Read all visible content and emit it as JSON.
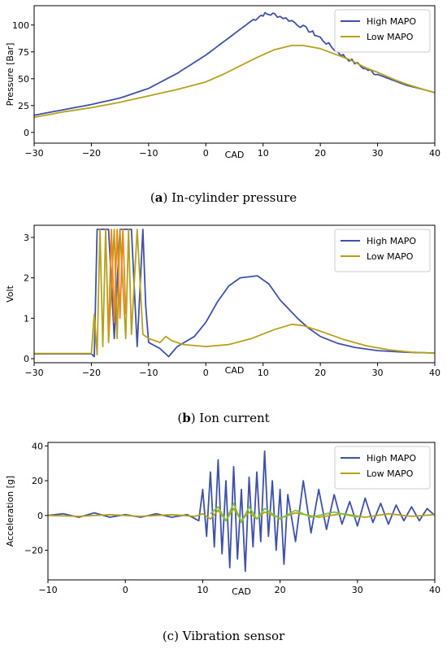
{
  "colors": {
    "high": "#3f51a8",
    "low": "#b5a21c",
    "orange": "#f5821f",
    "green": "#7cc440"
  },
  "chart_data": [
    {
      "type": "line",
      "caption": "(a) In-cylinder pressure",
      "caption_bold": "a",
      "caption_rest": "In-cylinder pressure",
      "xlabel": "CAD",
      "ylabel": "Pressure [Bar]",
      "xlim": [
        -30,
        40
      ],
      "ylim": [
        -10,
        118
      ],
      "xticks": [
        -30,
        -20,
        -10,
        0,
        10,
        20,
        30,
        40
      ],
      "yticks": [
        0,
        25,
        50,
        75,
        100
      ],
      "legend": "top-right",
      "series": [
        {
          "name": "High MAPO",
          "color": "high",
          "noise": 2,
          "points": [
            [
              -30,
              16
            ],
            [
              -25,
              21
            ],
            [
              -20,
              26
            ],
            [
              -15,
              32
            ],
            [
              -10,
              41
            ],
            [
              -5,
              55
            ],
            [
              0,
              72
            ],
            [
              3,
              84
            ],
            [
              6,
              96
            ],
            [
              8,
              104
            ],
            [
              10,
              110
            ],
            [
              12,
              110
            ],
            [
              15,
              104
            ],
            [
              18,
              95
            ],
            [
              20,
              88
            ],
            [
              23,
              75
            ],
            [
              25,
              68
            ],
            [
              28,
              59
            ],
            [
              30,
              54
            ],
            [
              33,
              48
            ],
            [
              35,
              44
            ],
            [
              38,
              40
            ],
            [
              40,
              37
            ]
          ]
        },
        {
          "name": "Low MAPO",
          "color": "low",
          "noise": 0,
          "points": [
            [
              -30,
              14
            ],
            [
              -25,
              19
            ],
            [
              -20,
              23
            ],
            [
              -15,
              28
            ],
            [
              -10,
              34
            ],
            [
              -5,
              40
            ],
            [
              0,
              47
            ],
            [
              3,
              54
            ],
            [
              6,
              62
            ],
            [
              9,
              70
            ],
            [
              12,
              77
            ],
            [
              15,
              81
            ],
            [
              17,
              81
            ],
            [
              20,
              78
            ],
            [
              23,
              72
            ],
            [
              25,
              68
            ],
            [
              28,
              60
            ],
            [
              30,
              56
            ],
            [
              33,
              49
            ],
            [
              35,
              45
            ],
            [
              38,
              40
            ],
            [
              40,
              37
            ]
          ]
        }
      ]
    },
    {
      "type": "line",
      "caption": "(b) Ion current",
      "caption_bold": "b",
      "caption_rest": "Ion current",
      "xlabel": "CAD",
      "ylabel": "Volt",
      "xlim": [
        -30,
        40
      ],
      "ylim": [
        -0.1,
        3.3
      ],
      "xticks": [
        -30,
        -20,
        -10,
        0,
        10,
        20,
        30,
        40
      ],
      "yticks": [
        0,
        1,
        2,
        3
      ],
      "legend": "top-right",
      "series": [
        {
          "name": "High MAPO",
          "color": "high",
          "noise": 0,
          "points": [
            [
              -30,
              0.12
            ],
            [
              -20,
              0.12
            ],
            [
              -19.5,
              0.05
            ],
            [
              -19,
              3.2
            ],
            [
              -17,
              3.2
            ],
            [
              -16,
              0.5
            ],
            [
              -15,
              3.2
            ],
            [
              -13,
              3.2
            ],
            [
              -12,
              0.3
            ],
            [
              -11,
              3.2
            ],
            [
              -10.5,
              1.3
            ],
            [
              -10,
              0.4
            ],
            [
              -8,
              0.25
            ],
            [
              -6.5,
              0.05
            ],
            [
              -5,
              0.3
            ],
            [
              -2,
              0.55
            ],
            [
              0,
              0.9
            ],
            [
              2,
              1.4
            ],
            [
              4,
              1.8
            ],
            [
              6,
              2.0
            ],
            [
              9,
              2.05
            ],
            [
              11,
              1.85
            ],
            [
              13,
              1.45
            ],
            [
              16,
              1.0
            ],
            [
              18,
              0.75
            ],
            [
              20,
              0.55
            ],
            [
              23,
              0.38
            ],
            [
              26,
              0.28
            ],
            [
              30,
              0.2
            ],
            [
              35,
              0.16
            ],
            [
              40,
              0.14
            ]
          ]
        },
        {
          "name": "Low MAPO",
          "color": "low",
          "noise": 0,
          "points": [
            [
              -30,
              0.13
            ],
            [
              -20,
              0.13
            ],
            [
              -19.5,
              1.1
            ],
            [
              -19,
              0.1
            ],
            [
              -18.5,
              3.2
            ],
            [
              -18,
              0.3
            ],
            [
              -17.5,
              3.2
            ],
            [
              -17,
              0.4
            ],
            [
              -16,
              3.2
            ],
            [
              -15.5,
              0.5
            ],
            [
              -15,
              3.2
            ],
            [
              -14,
              0.5
            ],
            [
              -13.5,
              3.2
            ],
            [
              -13,
              0.6
            ],
            [
              -12,
              3.2
            ],
            [
              -11,
              0.6
            ],
            [
              -10,
              0.5
            ],
            [
              -8,
              0.4
            ],
            [
              -7,
              0.55
            ],
            [
              -6,
              0.45
            ],
            [
              -4,
              0.35
            ],
            [
              0,
              0.3
            ],
            [
              4,
              0.35
            ],
            [
              8,
              0.5
            ],
            [
              12,
              0.72
            ],
            [
              15,
              0.85
            ],
            [
              17,
              0.82
            ],
            [
              20,
              0.68
            ],
            [
              24,
              0.48
            ],
            [
              28,
              0.32
            ],
            [
              32,
              0.22
            ],
            [
              36,
              0.16
            ],
            [
              40,
              0.14
            ]
          ]
        },
        {
          "name": "",
          "color": "orange",
          "noise": 0,
          "points": [
            [
              -17,
              0.7
            ],
            [
              -16.5,
              3.2
            ],
            [
              -16,
              0.9
            ],
            [
              -15.5,
              3.2
            ],
            [
              -15,
              1.0
            ],
            [
              -14.5,
              3.2
            ],
            [
              -14,
              1.1
            ]
          ]
        }
      ]
    },
    {
      "type": "line",
      "caption": "(c) Vibration sensor",
      "caption_bold": "",
      "caption_rest": "(c) Vibration sensor",
      "xlabel": "CAD",
      "ylabel": "Acceleration [g]",
      "xlim": [
        -10,
        40
      ],
      "ylim": [
        -37,
        42
      ],
      "xticks": [
        -10,
        0,
        10,
        20,
        30,
        40
      ],
      "yticks": [
        -20,
        0,
        20,
        40
      ],
      "legend": "top-right",
      "series": [
        {
          "name": "High MAPO",
          "color": "high",
          "noise": 0,
          "points": [
            [
              -10,
              0
            ],
            [
              -8,
              1
            ],
            [
              -6,
              -1
            ],
            [
              -4,
              1.5
            ],
            [
              -2,
              -1
            ],
            [
              0,
              0.5
            ],
            [
              2,
              -1
            ],
            [
              4,
              1
            ],
            [
              6,
              -1
            ],
            [
              8,
              0.5
            ],
            [
              9.5,
              -3
            ],
            [
              10,
              15
            ],
            [
              10.5,
              -12
            ],
            [
              11,
              25
            ],
            [
              11.5,
              -18
            ],
            [
              12,
              32
            ],
            [
              12.5,
              -22
            ],
            [
              13,
              20
            ],
            [
              13.5,
              -30
            ],
            [
              14,
              28
            ],
            [
              14.5,
              -25
            ],
            [
              15,
              15
            ],
            [
              15.5,
              -32
            ],
            [
              16,
              22
            ],
            [
              16.5,
              -18
            ],
            [
              17,
              25
            ],
            [
              17.5,
              -15
            ],
            [
              18,
              37
            ],
            [
              18.5,
              -12
            ],
            [
              19,
              20
            ],
            [
              19.5,
              -20
            ],
            [
              20,
              15
            ],
            [
              20.5,
              -28
            ],
            [
              21,
              12
            ],
            [
              22,
              -15
            ],
            [
              23,
              20
            ],
            [
              24,
              -10
            ],
            [
              25,
              15
            ],
            [
              26,
              -8
            ],
            [
              27,
              12
            ],
            [
              28,
              -5
            ],
            [
              29,
              8
            ],
            [
              30,
              -6
            ],
            [
              31,
              10
            ],
            [
              32,
              -4
            ],
            [
              33,
              7
            ],
            [
              34,
              -5
            ],
            [
              35,
              6
            ],
            [
              36,
              -3
            ],
            [
              37,
              5
            ],
            [
              38,
              -3
            ],
            [
              39,
              4
            ],
            [
              40,
              0
            ]
          ]
        },
        {
          "name": "Low MAPO",
          "color": "low",
          "noise": 0,
          "points": [
            [
              -10,
              0
            ],
            [
              -6,
              -0.5
            ],
            [
              -2,
              0.5
            ],
            [
              2,
              -0.5
            ],
            [
              6,
              0.5
            ],
            [
              9,
              -0.5
            ],
            [
              10,
              1
            ],
            [
              11,
              -2
            ],
            [
              12,
              3
            ],
            [
              13,
              -3
            ],
            [
              14,
              4
            ],
            [
              15,
              -3
            ],
            [
              16,
              2
            ],
            [
              17,
              -2
            ],
            [
              18,
              2
            ],
            [
              20,
              -1.5
            ],
            [
              22,
              1.5
            ],
            [
              25,
              -1
            ],
            [
              28,
              1
            ],
            [
              31,
              -1
            ],
            [
              34,
              1
            ],
            [
              37,
              -0.5
            ],
            [
              40,
              0.5
            ]
          ]
        },
        {
          "name": "",
          "color": "green",
          "noise": 0,
          "points": [
            [
              11,
              1
            ],
            [
              12,
              5
            ],
            [
              13,
              -3
            ],
            [
              14,
              7
            ],
            [
              15,
              -4
            ],
            [
              16,
              5
            ],
            [
              17,
              -2
            ],
            [
              18,
              4
            ],
            [
              20,
              -2
            ],
            [
              22,
              3
            ],
            [
              24,
              -1
            ],
            [
              27,
              2
            ],
            [
              30,
              -1
            ]
          ]
        }
      ]
    }
  ]
}
